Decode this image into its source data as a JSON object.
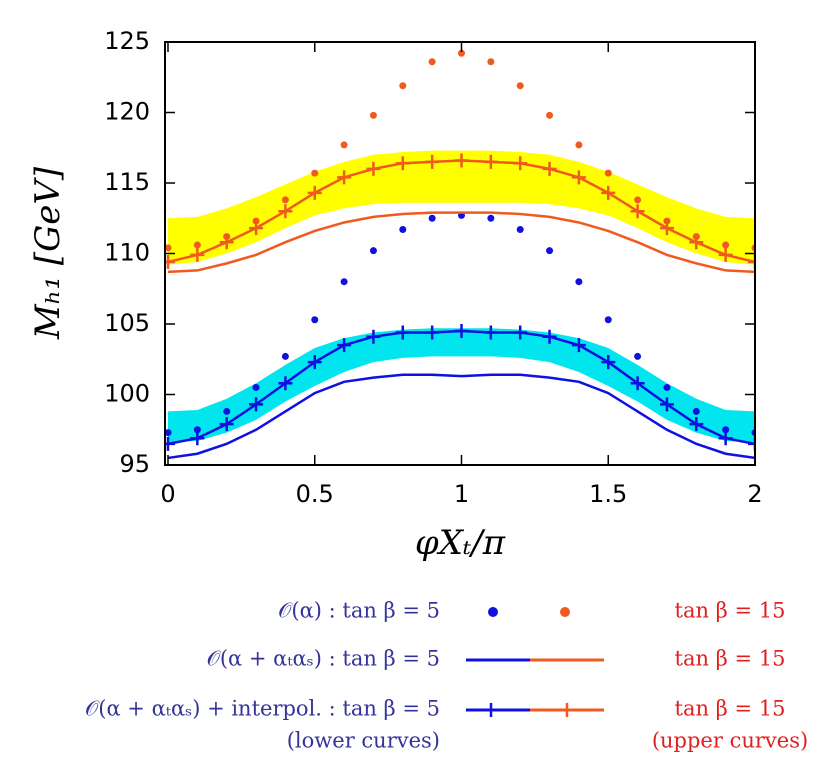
{
  "chart_data": {
    "type": "line",
    "x_label": "φXₜ/π",
    "y_label": "Mₕ₁ [GeV]",
    "x": [
      0,
      0.1,
      0.2,
      0.3,
      0.4,
      0.5,
      0.6,
      0.7,
      0.8,
      0.9,
      1.0,
      1.1,
      1.2,
      1.3,
      1.4,
      1.5,
      1.6,
      1.7,
      1.8,
      1.9,
      2.0
    ],
    "xlim": [
      0,
      2
    ],
    "xticks": [
      0,
      0.5,
      1,
      1.5,
      2
    ],
    "ylim": [
      95,
      125
    ],
    "yticks": [
      95,
      100,
      105,
      110,
      115,
      120,
      125
    ],
    "bands": [
      {
        "color": "#ffff00",
        "upper": [
          112.5,
          112.6,
          113.2,
          114.0,
          114.9,
          115.8,
          116.5,
          117.0,
          117.2,
          117.3,
          117.3,
          117.3,
          117.2,
          117.0,
          116.5,
          115.8,
          114.9,
          114.0,
          113.2,
          112.6,
          112.5
        ],
        "lower": [
          109.2,
          109.4,
          110.0,
          110.8,
          111.8,
          112.7,
          113.2,
          113.5,
          113.6,
          113.6,
          113.6,
          113.6,
          113.6,
          113.5,
          113.2,
          112.7,
          111.8,
          110.8,
          110.0,
          109.4,
          109.2
        ]
      },
      {
        "color": "#00e5ee",
        "upper": [
          98.8,
          98.9,
          99.7,
          100.8,
          102.1,
          103.3,
          104.0,
          104.4,
          104.6,
          104.7,
          104.7,
          104.7,
          104.6,
          104.4,
          104.0,
          103.3,
          102.1,
          100.8,
          99.7,
          98.9,
          98.8
        ],
        "lower": [
          96.6,
          96.7,
          97.3,
          98.2,
          99.5,
          100.6,
          101.6,
          102.3,
          102.6,
          102.7,
          102.7,
          102.7,
          102.6,
          102.3,
          101.6,
          100.6,
          99.5,
          98.2,
          97.3,
          96.7,
          96.6
        ]
      }
    ],
    "series": [
      {
        "name": "𝒪(α) : tan β = 5",
        "style": "dots",
        "color": "#1010e0",
        "values": [
          97.3,
          97.5,
          98.8,
          100.5,
          102.7,
          105.3,
          108.0,
          110.2,
          111.7,
          112.5,
          112.7,
          112.5,
          111.7,
          110.2,
          108.0,
          105.3,
          102.7,
          100.5,
          98.8,
          97.5,
          97.3
        ]
      },
      {
        "name": "tan β = 15",
        "style": "dots",
        "color": "#f05a1e",
        "values": [
          110.4,
          110.6,
          111.2,
          112.3,
          113.8,
          115.7,
          117.7,
          119.8,
          121.9,
          123.6,
          124.2,
          123.6,
          121.9,
          119.8,
          117.7,
          115.7,
          113.8,
          112.3,
          111.2,
          110.6,
          110.4
        ]
      },
      {
        "name": "𝒪(α + αₜαₛ) : tan β = 5",
        "style": "line",
        "color": "#1010e0",
        "values": [
          95.5,
          95.8,
          96.5,
          97.5,
          98.8,
          100.1,
          100.9,
          101.2,
          101.4,
          101.4,
          101.3,
          101.4,
          101.4,
          101.2,
          100.9,
          100.1,
          98.8,
          97.5,
          96.5,
          95.8,
          95.5
        ]
      },
      {
        "name": "tan β = 15",
        "style": "line",
        "color": "#f05a1e",
        "values": [
          108.7,
          108.8,
          109.3,
          109.9,
          110.8,
          111.6,
          112.2,
          112.6,
          112.8,
          112.9,
          112.9,
          112.9,
          112.8,
          112.6,
          112.2,
          111.6,
          110.8,
          109.9,
          109.3,
          108.8,
          108.7
        ]
      },
      {
        "name": "𝒪(α + αₜαₛ) + interpol. : tan β = 5",
        "style": "line-cross",
        "color": "#1010e0",
        "values": [
          96.5,
          96.9,
          97.9,
          99.3,
          100.8,
          102.3,
          103.5,
          104.1,
          104.4,
          104.4,
          104.5,
          104.4,
          104.4,
          104.1,
          103.5,
          102.3,
          100.8,
          99.3,
          97.9,
          96.9,
          96.5
        ]
      },
      {
        "name": "tan β = 15",
        "style": "line-cross",
        "color": "#f05a1e",
        "values": [
          109.4,
          109.9,
          110.8,
          111.8,
          113.0,
          114.3,
          115.4,
          116.0,
          116.4,
          116.5,
          116.6,
          116.5,
          116.4,
          116.0,
          115.4,
          114.3,
          113.0,
          111.8,
          110.8,
          109.9,
          109.4
        ]
      }
    ],
    "legend_notes": [
      "(lower curves)",
      "(upper curves)"
    ]
  }
}
